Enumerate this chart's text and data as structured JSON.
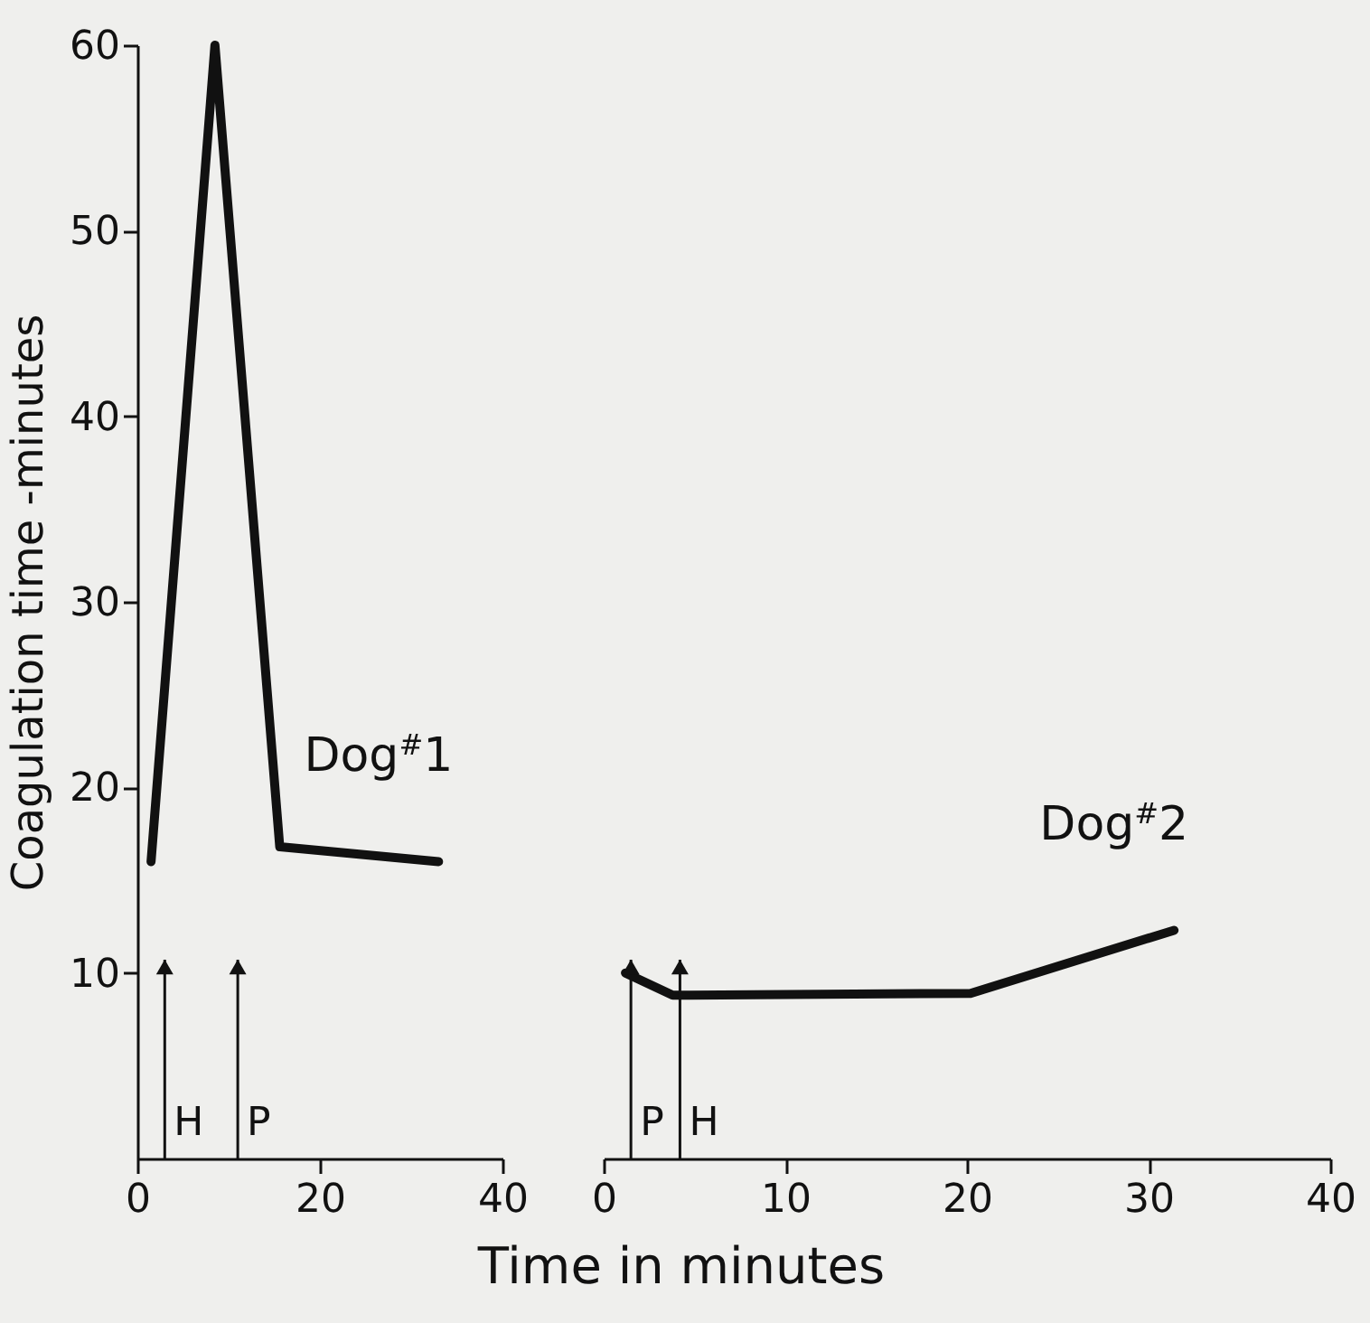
{
  "chart_data": [
    {
      "type": "line",
      "ylabel": "Coagulation time -minutes",
      "xlabel": "Time in minutes",
      "x": [
        1.5,
        8.5,
        15.6,
        33
      ],
      "series": [
        {
          "name": "Dog$^{#}$1",
          "color": "#111111",
          "values": [
            16,
            60,
            16.8,
            16
          ]
        }
      ],
      "xlim": [
        0,
        40
      ],
      "xticks": [
        0,
        20,
        40
      ],
      "ylim": [
        0,
        60
      ],
      "yticks": [
        10,
        20,
        30,
        40,
        50,
        60
      ],
      "ref_lines": [
        {
          "axis": "x",
          "value": 3,
          "label": "H"
        },
        {
          "axis": "x",
          "value": 11,
          "label": "P"
        }
      ]
    },
    {
      "type": "line",
      "tick_labels": "x",
      "x": [
        1.2,
        3.8,
        20.2,
        31.4
      ],
      "series": [
        {
          "name": "Dog$^{#}$2",
          "color": "#111111",
          "values": [
            10,
            8.8,
            8.9,
            12.3
          ]
        }
      ],
      "xlim": [
        0,
        40
      ],
      "xticks": [
        0,
        10,
        20,
        30,
        40
      ],
      "ylim": [
        0,
        60
      ],
      "ref_lines": [
        {
          "axis": "x",
          "value": 1.5,
          "label": "P"
        },
        {
          "axis": "x",
          "value": 4.2,
          "label": "H"
        }
      ]
    }
  ]
}
